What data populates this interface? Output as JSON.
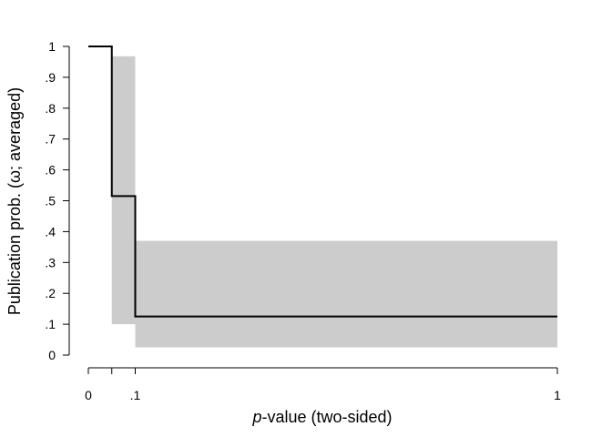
{
  "chart_data": {
    "type": "step",
    "title": "",
    "xlabel": "-value (two-sided)",
    "xlabel_prefix": "p",
    "ylabel": "Publication prob. (ω; averaged)",
    "xlim": [
      0,
      1
    ],
    "ylim": [
      0,
      1
    ],
    "x_ticks": [
      0,
      0.05,
      0.1,
      1
    ],
    "x_tick_labels": [
      "0",
      "",
      ".1",
      "1"
    ],
    "y_ticks": [
      0,
      0.1,
      0.2,
      0.3,
      0.4,
      0.5,
      0.6,
      0.7,
      0.8,
      0.9,
      1
    ],
    "y_tick_labels": [
      "0",
      ".1",
      ".2",
      ".3",
      ".4",
      ".5",
      ".6",
      ".7",
      ".8",
      ".9",
      "1"
    ],
    "steps": [
      {
        "x_start": 0,
        "x_end": 0.05,
        "estimate": 1.0,
        "ci_lower": 1.0,
        "ci_upper": 1.0
      },
      {
        "x_start": 0.05,
        "x_end": 0.1,
        "estimate": 0.515,
        "ci_lower": 0.1,
        "ci_upper": 0.968
      },
      {
        "x_start": 0.1,
        "x_end": 1,
        "estimate": 0.125,
        "ci_lower": 0.025,
        "ci_upper": 0.37
      }
    ],
    "colors": {
      "line": "#000000",
      "ci_band": "#cccccc"
    }
  }
}
